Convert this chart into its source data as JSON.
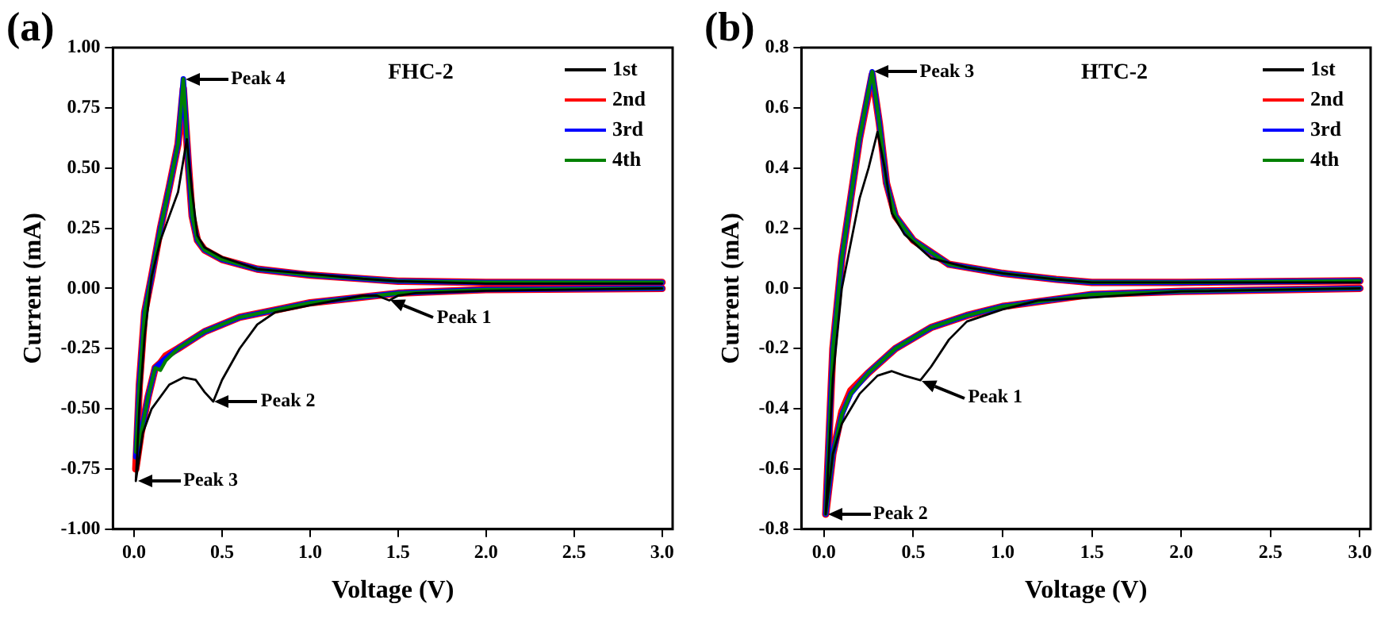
{
  "chart_data": [
    {
      "type": "line",
      "title": "(a)",
      "xlabel": "Voltage (V)",
      "ylabel": "Current (mA)",
      "legend": "top right",
      "marker": "none",
      "line_style": "solid",
      "grid": false,
      "xlim": [
        -0.12,
        3.06
      ],
      "ylim": [
        -1.0,
        1.0
      ],
      "xticks": [
        {
          "value": 0,
          "label": "0.0"
        },
        {
          "value": 0.5,
          "label": "0.5"
        },
        {
          "value": 1,
          "label": "1.0"
        },
        {
          "value": 1.5,
          "label": "1.5"
        },
        {
          "value": 2,
          "label": "2.0"
        },
        {
          "value": 2.5,
          "label": "2.5"
        },
        {
          "value": 3,
          "label": "3.0"
        }
      ],
      "yticks": [
        {
          "value": -1,
          "label": "-1.00"
        },
        {
          "value": -0.75,
          "label": "-0.75"
        },
        {
          "value": -0.5,
          "label": "-0.50"
        },
        {
          "value": -0.25,
          "label": "-0.25"
        },
        {
          "value": 0,
          "label": "0.00"
        },
        {
          "value": 0.25,
          "label": "0.25"
        },
        {
          "value": 0.5,
          "label": "0.50"
        },
        {
          "value": 0.75,
          "label": "0.75"
        },
        {
          "value": 1,
          "label": "1.00"
        }
      ],
      "annotations": [
        "FHC-2",
        {
          "text": "Peak 4",
          "x": 0.28,
          "y": 0.87
        },
        {
          "text": "Peak 1",
          "x": 1.45,
          "y": -0.05
        },
        {
          "text": "Peak 2",
          "x": 0.45,
          "y": -0.47
        },
        {
          "text": "Peak 3",
          "x": 0.01,
          "y": -0.8
        }
      ],
      "series": [
        {
          "name": "1st",
          "color": "#000000",
          "x": [
            3.0,
            2.5,
            2.0,
            1.6,
            1.5,
            1.45,
            1.38,
            1.3,
            1.0,
            0.8,
            0.7,
            0.6,
            0.5,
            0.45,
            0.4,
            0.35,
            0.28,
            0.2,
            0.1,
            0.05,
            0.01,
            0.03,
            0.06,
            0.1,
            0.15,
            0.2,
            0.25,
            0.3,
            0.33,
            0.36,
            0.4,
            0.5,
            0.7,
            1.0,
            1.3,
            1.5,
            2.0,
            2.5,
            3.0
          ],
          "values": [
            0.0,
            -0.005,
            -0.01,
            -0.02,
            -0.03,
            -0.05,
            -0.03,
            -0.03,
            -0.07,
            -0.1,
            -0.15,
            -0.25,
            -0.38,
            -0.47,
            -0.43,
            -0.38,
            -0.37,
            -0.4,
            -0.5,
            -0.6,
            -0.8,
            -0.5,
            -0.2,
            0.05,
            0.2,
            0.3,
            0.4,
            0.62,
            0.4,
            0.22,
            0.17,
            0.13,
            0.08,
            0.06,
            0.04,
            0.03,
            0.02,
            0.02,
            0.02
          ]
        },
        {
          "name": "2nd",
          "color": "#ff0000",
          "x": [
            3.0,
            2.0,
            1.5,
            1.0,
            0.8,
            0.6,
            0.4,
            0.25,
            0.18,
            0.15,
            0.12,
            0.08,
            0.04,
            0.01,
            0.03,
            0.06,
            0.1,
            0.15,
            0.2,
            0.25,
            0.28,
            0.31,
            0.33,
            0.36,
            0.4,
            0.5,
            0.7,
            1.0,
            1.3,
            1.5,
            2.0,
            2.5,
            3.0
          ],
          "values": [
            0.0,
            -0.005,
            -0.02,
            -0.06,
            -0.09,
            -0.12,
            -0.18,
            -0.25,
            -0.28,
            -0.31,
            -0.33,
            -0.45,
            -0.6,
            -0.75,
            -0.4,
            -0.1,
            0.05,
            0.25,
            0.42,
            0.6,
            0.83,
            0.5,
            0.3,
            0.2,
            0.16,
            0.12,
            0.08,
            0.055,
            0.04,
            0.03,
            0.025,
            0.025,
            0.025
          ]
        },
        {
          "name": "3rd",
          "color": "#0000ff",
          "x": [
            3.0,
            2.0,
            1.5,
            1.0,
            0.8,
            0.6,
            0.4,
            0.25,
            0.18,
            0.15,
            0.12,
            0.08,
            0.04,
            0.01,
            0.03,
            0.06,
            0.1,
            0.15,
            0.2,
            0.25,
            0.28,
            0.31,
            0.33,
            0.36,
            0.4,
            0.5,
            0.7,
            1.0,
            1.3,
            1.5,
            2.0,
            2.5,
            3.0
          ],
          "values": [
            0.0,
            -0.005,
            -0.02,
            -0.06,
            -0.09,
            -0.12,
            -0.18,
            -0.25,
            -0.29,
            -0.31,
            -0.33,
            -0.45,
            -0.6,
            -0.7,
            -0.4,
            -0.1,
            0.05,
            0.25,
            0.42,
            0.6,
            0.87,
            0.5,
            0.3,
            0.2,
            0.16,
            0.12,
            0.08,
            0.055,
            0.04,
            0.03,
            0.025,
            0.025,
            0.025
          ]
        },
        {
          "name": "4th",
          "color": "#008000",
          "x": [
            3.0,
            2.0,
            1.5,
            1.0,
            0.8,
            0.6,
            0.4,
            0.25,
            0.18,
            0.15,
            0.12,
            0.08,
            0.04,
            0.01,
            0.03,
            0.06,
            0.1,
            0.15,
            0.2,
            0.25,
            0.28,
            0.31,
            0.33,
            0.36,
            0.4,
            0.5,
            0.7,
            1.0,
            1.3,
            1.5,
            2.0,
            2.5,
            3.0
          ],
          "values": [
            0.0,
            -0.005,
            -0.02,
            -0.06,
            -0.09,
            -0.12,
            -0.18,
            -0.25,
            -0.3,
            -0.34,
            -0.33,
            -0.45,
            -0.6,
            -0.68,
            -0.4,
            -0.1,
            0.05,
            0.25,
            0.42,
            0.6,
            0.87,
            0.5,
            0.3,
            0.2,
            0.16,
            0.12,
            0.08,
            0.055,
            0.04,
            0.03,
            0.025,
            0.025,
            0.025
          ]
        }
      ]
    },
    {
      "type": "line",
      "title": "(b)",
      "xlabel": "Voltage (V)",
      "ylabel": "Current (mA)",
      "legend": "top right",
      "marker": "none",
      "line_style": "solid",
      "grid": false,
      "xlim": [
        -0.126,
        3.06
      ],
      "ylim": [
        -0.8,
        0.8
      ],
      "xticks": [
        {
          "value": 0,
          "label": "0.0"
        },
        {
          "value": 0.5,
          "label": "0.5"
        },
        {
          "value": 1,
          "label": "1.0"
        },
        {
          "value": 1.5,
          "label": "1.5"
        },
        {
          "value": 2,
          "label": "2.0"
        },
        {
          "value": 2.5,
          "label": "2.5"
        },
        {
          "value": 3,
          "label": "3.0"
        }
      ],
      "yticks": [
        {
          "value": -0.8,
          "label": "-0.8"
        },
        {
          "value": -0.6,
          "label": "-0.6"
        },
        {
          "value": -0.4,
          "label": "-0.4"
        },
        {
          "value": -0.2,
          "label": "-0.2"
        },
        {
          "value": 0,
          "label": "0.0"
        },
        {
          "value": 0.2,
          "label": "0.2"
        },
        {
          "value": 0.4,
          "label": "0.4"
        },
        {
          "value": 0.6,
          "label": "0.6"
        },
        {
          "value": 0.8,
          "label": "0.8"
        }
      ],
      "annotations": [
        "HTC-2",
        {
          "text": "Peak 3",
          "x": 0.27,
          "y": 0.72
        },
        {
          "text": "Peak 1",
          "x": 0.54,
          "y": -0.305
        },
        {
          "text": "Peak 2",
          "x": 0.01,
          "y": -0.75
        }
      ],
      "series": [
        {
          "name": "1st",
          "color": "#000000",
          "x": [
            3.0,
            2.0,
            1.5,
            1.2,
            1.0,
            0.8,
            0.7,
            0.6,
            0.54,
            0.45,
            0.38,
            0.3,
            0.2,
            0.1,
            0.05,
            0.01,
            0.05,
            0.1,
            0.15,
            0.2,
            0.25,
            0.3,
            0.34,
            0.38,
            0.45,
            0.6,
            0.8,
            1.0,
            1.3,
            1.5,
            2.0,
            2.5,
            3.0
          ],
          "values": [
            0.0,
            -0.01,
            -0.03,
            -0.04,
            -0.07,
            -0.11,
            -0.17,
            -0.26,
            -0.305,
            -0.29,
            -0.275,
            -0.29,
            -0.35,
            -0.45,
            -0.55,
            -0.75,
            -0.3,
            0.0,
            0.15,
            0.3,
            0.4,
            0.52,
            0.4,
            0.25,
            0.18,
            0.1,
            0.07,
            0.05,
            0.03,
            0.02,
            0.02,
            0.02,
            0.02
          ]
        },
        {
          "name": "2nd",
          "color": "#ff0000",
          "x": [
            3.0,
            2.0,
            1.5,
            1.0,
            0.8,
            0.6,
            0.4,
            0.25,
            0.15,
            0.1,
            0.05,
            0.01,
            0.05,
            0.1,
            0.15,
            0.2,
            0.27,
            0.31,
            0.35,
            0.4,
            0.5,
            0.7,
            1.0,
            1.3,
            1.5,
            2.0,
            3.0
          ],
          "values": [
            0.0,
            -0.01,
            -0.02,
            -0.06,
            -0.09,
            -0.13,
            -0.2,
            -0.28,
            -0.34,
            -0.41,
            -0.55,
            -0.75,
            -0.2,
            0.1,
            0.3,
            0.5,
            0.71,
            0.55,
            0.35,
            0.24,
            0.16,
            0.08,
            0.05,
            0.03,
            0.02,
            0.02,
            0.025
          ]
        },
        {
          "name": "3rd",
          "color": "#0000ff",
          "x": [
            3.0,
            2.0,
            1.5,
            1.0,
            0.8,
            0.6,
            0.4,
            0.25,
            0.15,
            0.1,
            0.05,
            0.01,
            0.05,
            0.1,
            0.15,
            0.2,
            0.27,
            0.31,
            0.35,
            0.4,
            0.5,
            0.7,
            1.0,
            1.3,
            1.5,
            2.0,
            3.0
          ],
          "values": [
            0.0,
            -0.01,
            -0.02,
            -0.06,
            -0.09,
            -0.13,
            -0.2,
            -0.28,
            -0.35,
            -0.42,
            -0.55,
            -0.75,
            -0.2,
            0.1,
            0.3,
            0.5,
            0.72,
            0.55,
            0.35,
            0.24,
            0.16,
            0.08,
            0.05,
            0.03,
            0.02,
            0.02,
            0.025
          ]
        },
        {
          "name": "4th",
          "color": "#008000",
          "x": [
            3.0,
            2.0,
            1.5,
            1.0,
            0.8,
            0.6,
            0.4,
            0.25,
            0.15,
            0.1,
            0.05,
            0.01,
            0.05,
            0.1,
            0.15,
            0.2,
            0.27,
            0.31,
            0.35,
            0.4,
            0.5,
            0.7,
            1.0,
            1.3,
            1.5,
            2.0,
            3.0
          ],
          "values": [
            0.0,
            -0.01,
            -0.02,
            -0.06,
            -0.09,
            -0.13,
            -0.2,
            -0.28,
            -0.35,
            -0.42,
            -0.55,
            -0.75,
            -0.2,
            0.1,
            0.3,
            0.5,
            0.72,
            0.55,
            0.35,
            0.24,
            0.16,
            0.08,
            0.05,
            0.03,
            0.02,
            0.02,
            0.025
          ]
        }
      ]
    }
  ]
}
